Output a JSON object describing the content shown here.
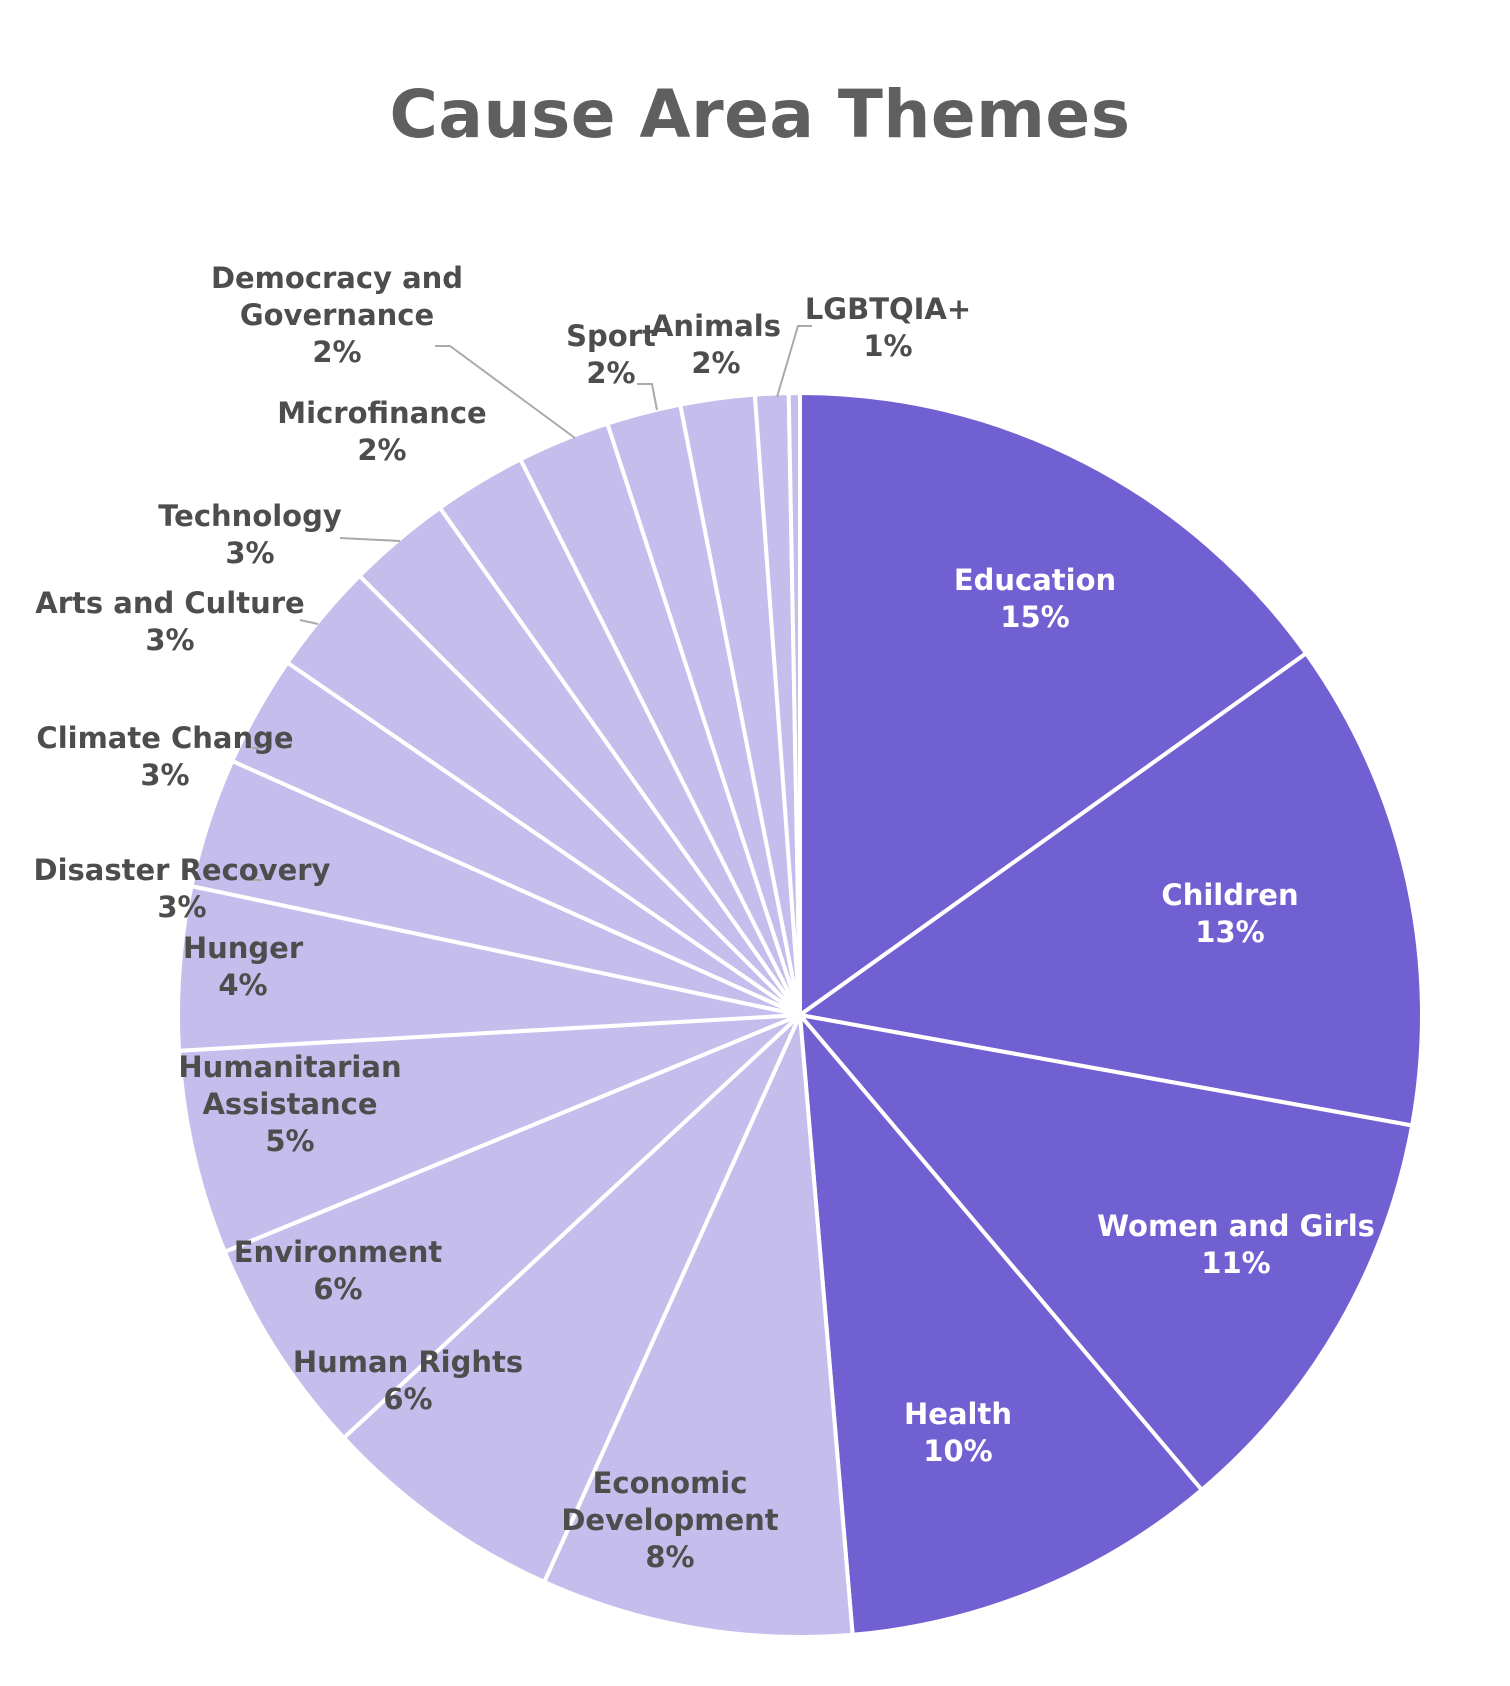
{
  "chart_data": {
    "type": "pie",
    "title": "Cause Area Themes",
    "colors": {
      "dark": "#7160d1",
      "light": "#c5bdec",
      "label_dark_text": "#ffffff",
      "label_light_text": "#4d4d4d",
      "leader_line": "#aaaaaa",
      "title": "#5f5f5f"
    },
    "slices": [
      {
        "name": "Education",
        "label": "15%",
        "value": 15.7,
        "tone": "dark"
      },
      {
        "name": "Children",
        "label": "13%",
        "value": 13.2,
        "tone": "dark"
      },
      {
        "name": "Women and Girls",
        "label": "11%",
        "value": 11.4,
        "tone": "dark"
      },
      {
        "name": "Health",
        "label": "10%",
        "value": 10.2,
        "tone": "dark"
      },
      {
        "name": "Economic Development",
        "label": "8%",
        "value": 8.4,
        "tone": "light"
      },
      {
        "name": "Human Rights",
        "label": "6%",
        "value": 6.6,
        "tone": "light"
      },
      {
        "name": "Environment",
        "label": "6%",
        "value": 5.9,
        "tone": "light"
      },
      {
        "name": "Humanitarian Assistance",
        "label": "5%",
        "value": 5.5,
        "tone": "light"
      },
      {
        "name": "Hunger",
        "label": "4%",
        "value": 4.4,
        "tone": "light"
      },
      {
        "name": "Disaster Recovery",
        "label": "3%",
        "value": 3.5,
        "tone": "light"
      },
      {
        "name": "Climate Change",
        "label": "3%",
        "value": 3.0,
        "tone": "light"
      },
      {
        "name": "Arts and Culture",
        "label": "3%",
        "value": 3.0,
        "tone": "light"
      },
      {
        "name": "Technology",
        "label": "3%",
        "value": 2.8,
        "tone": "light"
      },
      {
        "name": "Microfinance",
        "label": "2%",
        "value": 2.5,
        "tone": "light"
      },
      {
        "name": "Democracy and Governance",
        "label": "2%",
        "value": 2.5,
        "tone": "light"
      },
      {
        "name": "Sport",
        "label": "2%",
        "value": 2.0,
        "tone": "light"
      },
      {
        "name": "Animals",
        "label": "2%",
        "value": 2.0,
        "tone": "light"
      },
      {
        "name": "LGBTQIA+",
        "label": "1%",
        "value": 0.9,
        "tone": "light"
      },
      {
        "name": "",
        "label": "",
        "value": 0.3,
        "tone": "light"
      }
    ]
  }
}
